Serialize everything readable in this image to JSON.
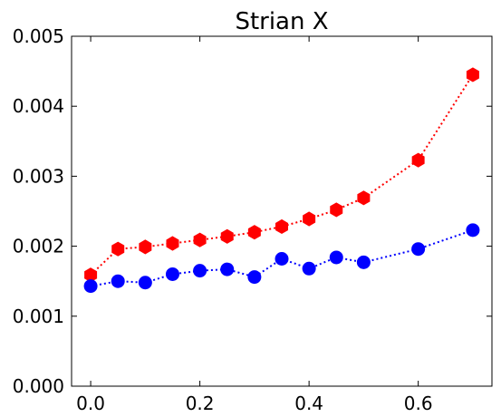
{
  "chart_data": {
    "type": "line",
    "title": "Strian X",
    "xlabel": "",
    "ylabel": "",
    "xlim": [
      -0.035,
      0.735
    ],
    "ylim": [
      0.0,
      0.005
    ],
    "x_ticks": [
      0.0,
      0.2,
      0.4,
      0.6
    ],
    "x_tick_labels": [
      "0.0",
      "0.2",
      "0.4",
      "0.6"
    ],
    "y_ticks": [
      0.0,
      0.001,
      0.002,
      0.003,
      0.004,
      0.005
    ],
    "y_tick_labels": [
      "0.000",
      "0.001",
      "0.002",
      "0.003",
      "0.004",
      "0.005"
    ],
    "grid": false,
    "x": [
      0.0,
      0.05,
      0.1,
      0.15,
      0.2,
      0.25,
      0.3,
      0.35,
      0.4,
      0.45,
      0.5,
      0.6,
      0.7
    ],
    "series": [
      {
        "color": "#ff0000",
        "marker": "hexagon",
        "line_style": "dotted",
        "values": [
          0.00159,
          0.00196,
          0.00199,
          0.00204,
          0.00209,
          0.00214,
          0.0022,
          0.00228,
          0.00239,
          0.00252,
          0.00269,
          0.00323,
          0.00445
        ]
      },
      {
        "color": "#0000ff",
        "marker": "circle",
        "line_style": "dotted",
        "values": [
          0.00143,
          0.0015,
          0.00148,
          0.0016,
          0.00165,
          0.00167,
          0.00156,
          0.00182,
          0.00168,
          0.00184,
          0.00177,
          0.00196,
          0.00223
        ]
      }
    ]
  }
}
